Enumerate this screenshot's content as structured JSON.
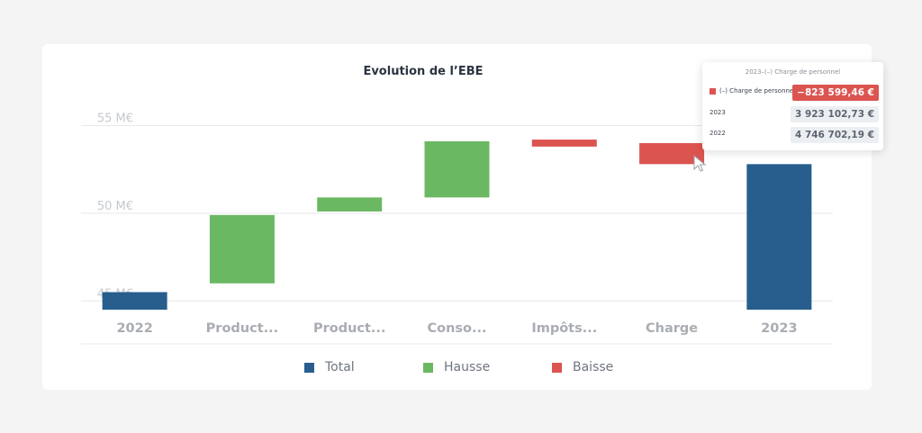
{
  "chart_data": {
    "type": "bar",
    "title": "Evolution de l’EBE",
    "y_unit": "M€",
    "ylim": [
      44.5,
      56
    ],
    "y_ticks": [
      {
        "value": 45,
        "label": "45 M€"
      },
      {
        "value": 50,
        "label": "50 M€"
      },
      {
        "value": 55,
        "label": "55 M€"
      }
    ],
    "categories": [
      "2022",
      "Product...",
      "Product...",
      "Conso...",
      "Impôts...",
      "Charge",
      "2023"
    ],
    "bars": [
      {
        "category": "2022",
        "kind": "Total",
        "start": 44.5,
        "end": 45.5
      },
      {
        "category": "Product...",
        "kind": "Hausse",
        "start": 46.0,
        "end": 49.9
      },
      {
        "category": "Product...",
        "kind": "Hausse",
        "start": 50.1,
        "end": 50.9
      },
      {
        "category": "Conso...",
        "kind": "Hausse",
        "start": 50.9,
        "end": 54.1
      },
      {
        "category": "Impôts...",
        "kind": "Baisse",
        "start": 53.8,
        "end": 54.2
      },
      {
        "category": "Charge",
        "kind": "Baisse",
        "start": 52.8,
        "end": 54.0
      },
      {
        "category": "2023",
        "kind": "Total",
        "start": 44.5,
        "end": 52.8
      }
    ],
    "grid": true,
    "legend": [
      {
        "name": "Total",
        "color": "#275e8e"
      },
      {
        "name": "Hausse",
        "color": "#6bb863"
      },
      {
        "name": "Baisse",
        "color": "#dc5450"
      }
    ],
    "legend_position": "bottom",
    "colors": {
      "Total": "#275e8e",
      "Hausse": "#6bb863",
      "Baisse": "#dc5450"
    }
  },
  "tooltip": {
    "header": "2023–(–) Charge de personnel",
    "rows": [
      {
        "label": "(–) Charge de personnel",
        "value": "−823 599,46 €"
      },
      {
        "label": "2023",
        "value": "3 923 102,73 €"
      },
      {
        "label": "2022",
        "value": "4 746 702,19 €"
      }
    ]
  }
}
